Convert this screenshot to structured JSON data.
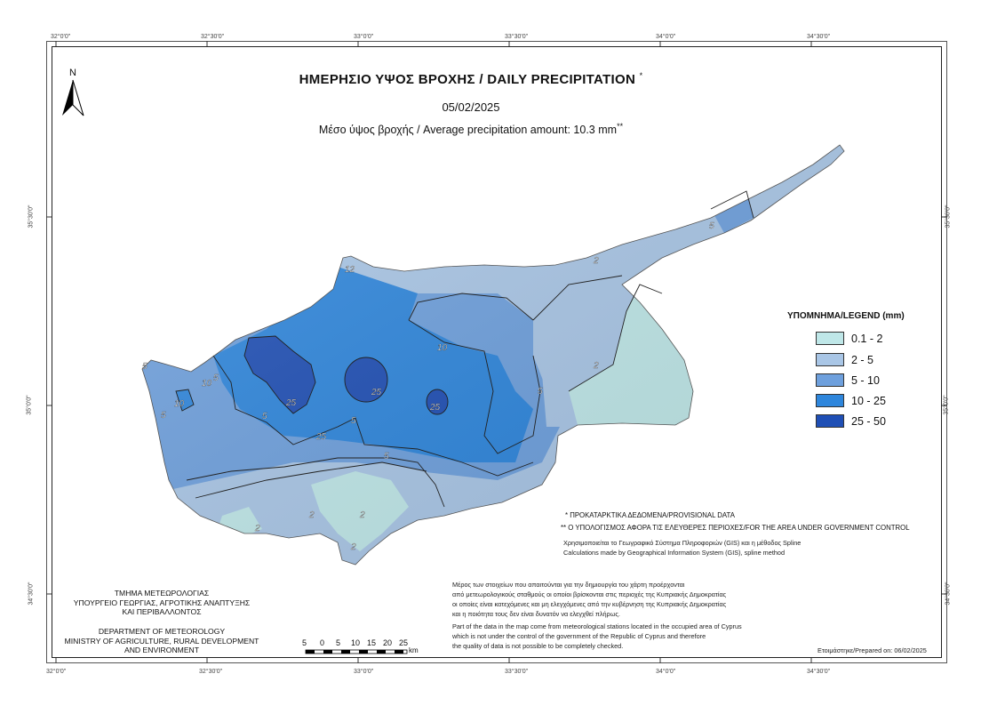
{
  "map": {
    "title": "ΗΜΕΡΗΣΙΟ ΥΨΟΣ ΒΡΟΧΗΣ / DAILY PRECIPITATION",
    "title_mark": "*",
    "date": "05/02/2025",
    "average": "Μέσο ύψος βροχής / Average precipitation amount: 10.3 mm",
    "average_mark": "**",
    "north_label": "N"
  },
  "graticule": {
    "lon_labels": [
      "32°0'0\"",
      "32°30'0\"",
      "33°0'0\"",
      "33°30'0\"",
      "34°0'0\"",
      "34°30'0\""
    ],
    "lat_labels": [
      "35°30'0\"",
      "35°0'0\"",
      "34°30'0\""
    ]
  },
  "legend": {
    "title": "ΥΠΟΜΝΗΜΑ/LEGEND (mm)",
    "items": [
      {
        "label": "0.1 - 2",
        "color": "#bfe7e8"
      },
      {
        "label": "2 - 5",
        "color": "#a9c6e6"
      },
      {
        "label": "5 - 10",
        "color": "#6ea0dd"
      },
      {
        "label": "10 - 25",
        "color": "#2e86dc"
      },
      {
        "label": "25 - 50",
        "color": "#1f4fb5"
      }
    ]
  },
  "contour_labels": [
    "2",
    "2",
    "2",
    "2",
    "2",
    "2",
    "5",
    "5",
    "5",
    "5",
    "5",
    "5",
    "5",
    "5",
    "10",
    "10",
    "10",
    "25",
    "25",
    "25",
    "25",
    "12"
  ],
  "notes": {
    "provisional": "* ΠΡΟΚΑΤΑΡΚΤΙΚΑ ΔΕΔΟΜΕΝΑ/PROVISIONAL DATA",
    "calculation_area": "** Ο ΥΠΟΛΟΓΙΣΜΟΣ ΑΦΟΡΑ ΤΙΣ ΕΛΕΥΘΕΡΕΣ ΠΕΡΙΟΧΕΣ/FOR THE AREA UNDER GOVERNMENT CONTROL",
    "gis_gr": "Χρησιμοποιείται το Γεωγραφικό Σύστημα Πληροφοριών (GIS) και η μέθοδος Spline",
    "gis_en": "Calculations made by Geographical Information System (GIS), spline method",
    "data_gr": [
      "Μέρος των στοιχείων που απαιτούνται για την δημιουργία του χάρτη προέρχονται",
      "από μετεωρολογικούς σταθμούς οι οποίοι βρίσκονται στις περιοχές της Κυπριακής Δημοκρατίας",
      "οι οποίες είναι κατεχόμενες και μη ελεγχόμενες από την κυβέρνηση της Κυπριακής Δημοκρατίας",
      "και η ποιότητα τους δεν είναι δυνατόν να ελεγχθεί πλήρως."
    ],
    "data_en": [
      "Part of the data in the map come from meteorological stations located in the occupied area of Cyprus",
      "which is not under the control of the government of the Republic of Cyprus and therefore",
      "the quality of data is not possible to be completely checked."
    ],
    "prepared": "Ετοιμάστηκε/Prepared on: 06/02/2025"
  },
  "department": {
    "gr": [
      "ΤΜΗΜΑ ΜΕΤΕΩΡΟΛΟΓΙΑΣ",
      "ΥΠΟΥΡΓΕΙΟ ΓΕΩΡΓΙΑΣ, ΑΓΡΟΤΙΚΗΣ ΑΝΑΠΤΥΞΗΣ",
      "ΚΑΙ ΠΕΡΙΒΑΛΛΟΝΤΟΣ"
    ],
    "en": [
      "DEPARTMENT OF METEOROLOGY",
      "MINISTRY OF AGRICULTURE, RURAL DEVELOPMENT",
      "AND ENVIRONMENT"
    ]
  },
  "scale_bar": {
    "labels": [
      "5",
      "0",
      "5",
      "10",
      "15",
      "20",
      "25"
    ],
    "unit": "km"
  }
}
